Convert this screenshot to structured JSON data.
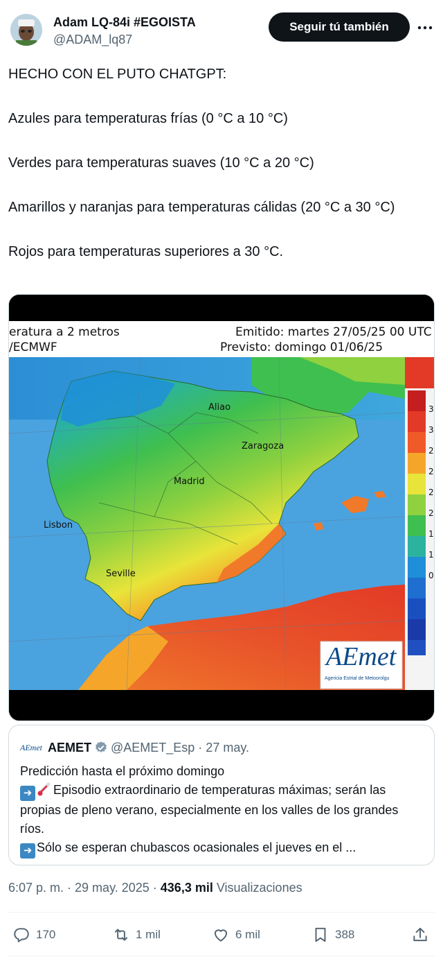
{
  "author": {
    "display_name": "Adam LQ-84i #EGOISTA",
    "handle": "@ADAM_lq87",
    "follow_label": "Seguir tú también"
  },
  "tweet": {
    "lines": [
      "HECHO CON EL PUTO CHATGPT:",
      "Azules para temperaturas frías (0 °C a 10 °C)",
      "Verdes para temperaturas suaves (10 °C a 20 °C)",
      "Amarillos y naranjas para temperaturas cálidas (20 °C a 30 °C)",
      "Rojos para temperaturas superiores a 30 °C."
    ]
  },
  "media": {
    "header_left_1": "eratura a 2 metros",
    "header_left_2": "/ECMWF",
    "header_right_1": "Emitido: martes 27/05/25 00 UTC",
    "header_right_2": "Previsto: domingo 01/06/25",
    "cities": [
      "Aliao",
      "Zaragoza",
      "Madrid",
      "Lisbon",
      "Seville"
    ],
    "scale_labels": [
      "3",
      "3",
      "2",
      "2",
      "2",
      "2",
      "1",
      "1",
      "0"
    ],
    "logo_text": "AEmet",
    "logo_sub": "Agericia Estrial de Metoorolgu",
    "colors": {
      "sea": "#4aa3df",
      "cold": "#1e8fd8",
      "mild": "#3fbf4f",
      "warm": "#e8e43a",
      "hot": "#f07a2a",
      "very_hot": "#e23a26"
    }
  },
  "quote": {
    "logo": "AEmet",
    "name": "AEMET",
    "handle": "@AEMET_Esp · 27 may.",
    "line1": "Predicción hasta el próximo domingo",
    "line2": "Episodio extraordinario de temperaturas máximas; serán las propias de pleno verano, especialmente en los valles de los grandes ríos.",
    "line3": "Sólo se esperan chubascos ocasionales el jueves en el ...",
    "icons": [
      "arrow-right-emoji",
      "thermometer-emoji"
    ]
  },
  "meta": {
    "time": "6:07 p. m. · 29 may. 2025 · ",
    "views_count": "436,3 mil",
    "views_label": " Visualizaciones"
  },
  "actions": {
    "replies": "170",
    "reposts": "1 mil",
    "likes": "6 mil",
    "bookmarks": "388"
  }
}
